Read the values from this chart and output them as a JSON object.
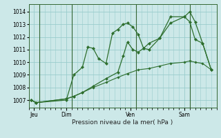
{
  "background_color": "#cce8e8",
  "grid_color": "#99cccc",
  "line_color": "#2d6e2d",
  "marker_color": "#2d6e2d",
  "xlabel": "Pression niveau de la mer( hPa )",
  "ylim": [
    1006.4,
    1014.6
  ],
  "yticks": [
    1007,
    1008,
    1009,
    1010,
    1011,
    1012,
    1013,
    1014
  ],
  "day_labels": [
    "Jeu",
    "Dim",
    "Ven",
    "Sam"
  ],
  "day_positions": [
    0.5,
    3.5,
    9.5,
    14.5
  ],
  "vline_positions": [
    1.0,
    4.0,
    10.0,
    15.0
  ],
  "xlim": [
    0,
    17.5
  ],
  "series1_x": [
    0.2,
    0.7,
    3.5,
    4.2,
    5.0,
    5.5,
    6.0,
    6.5,
    7.2,
    7.8,
    8.3,
    8.8,
    9.2,
    9.7,
    10.2,
    10.7,
    11.2,
    12.2,
    13.2,
    14.5,
    15.0,
    15.5,
    16.2,
    17.0
  ],
  "series1_y": [
    1007.0,
    1006.8,
    1007.0,
    1009.0,
    1009.6,
    1011.2,
    1011.1,
    1010.3,
    1009.9,
    1012.3,
    1012.6,
    1013.0,
    1013.1,
    1012.8,
    1012.2,
    1011.1,
    1011.0,
    1011.9,
    1013.6,
    1013.6,
    1014.0,
    1013.2,
    1011.5,
    1009.4
  ],
  "series2_x": [
    0.2,
    0.7,
    3.5,
    4.2,
    5.0,
    6.0,
    7.2,
    8.3,
    8.8,
    9.2,
    9.7,
    10.2,
    10.7,
    11.2,
    12.2,
    13.2,
    14.5,
    15.0,
    15.5,
    16.2,
    17.0
  ],
  "series2_y": [
    1007.0,
    1006.8,
    1007.1,
    1007.3,
    1007.6,
    1008.1,
    1008.7,
    1009.2,
    1010.5,
    1011.6,
    1011.0,
    1010.8,
    1011.1,
    1011.5,
    1011.9,
    1013.1,
    1013.6,
    1013.2,
    1011.8,
    1011.5,
    1009.4
  ],
  "series3_x": [
    0.2,
    0.7,
    3.5,
    4.2,
    5.0,
    6.0,
    7.2,
    8.3,
    9.2,
    10.2,
    11.2,
    12.2,
    13.2,
    14.5,
    15.0,
    15.5,
    16.2,
    17.0
  ],
  "series3_y": [
    1007.0,
    1006.8,
    1007.1,
    1007.3,
    1007.6,
    1008.0,
    1008.4,
    1008.8,
    1009.1,
    1009.4,
    1009.5,
    1009.7,
    1009.9,
    1010.0,
    1010.1,
    1010.0,
    1009.9,
    1009.4
  ]
}
